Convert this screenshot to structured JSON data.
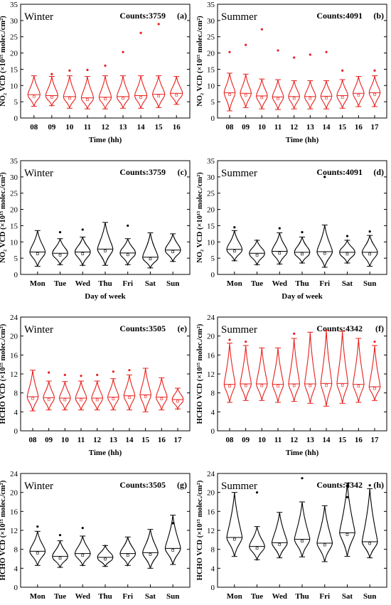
{
  "chart_data": [
    {
      "id": "a",
      "type": "violin",
      "season": "Winter",
      "counts": "Counts:3759",
      "panel_label": "(a)",
      "color": "#e8201c",
      "xlabel": "Time (hh)",
      "ylabel": "NO₂ VCD (×10¹⁵ molec./cm²)",
      "ylim": [
        0,
        35
      ],
      "yticks": [
        0,
        5,
        10,
        15,
        20,
        25,
        30,
        35
      ],
      "categories": [
        "08",
        "09",
        "10",
        "11",
        "12",
        "13",
        "14",
        "15",
        "16"
      ],
      "series": [
        {
          "whisker_low": 3.6,
          "whisker_high": 13.0,
          "center": 7.2,
          "outliers": []
        },
        {
          "whisker_low": 3.8,
          "whisker_high": 12.8,
          "center": 6.9,
          "outliers": [
            13.5
          ]
        },
        {
          "whisker_low": 3.0,
          "whisker_high": 13.0,
          "center": 6.6,
          "outliers": [
            14.6
          ]
        },
        {
          "whisker_low": 2.8,
          "whisker_high": 12.8,
          "center": 6.2,
          "outliers": [
            14.8
          ]
        },
        {
          "whisker_low": 2.8,
          "whisker_high": 13.0,
          "center": 6.4,
          "outliers": [
            16.1
          ]
        },
        {
          "whisker_low": 3.0,
          "whisker_high": 13.0,
          "center": 6.6,
          "outliers": [
            20.3
          ]
        },
        {
          "whisker_low": 3.0,
          "whisker_high": 13.0,
          "center": 6.9,
          "outliers": [
            26.2
          ]
        },
        {
          "whisker_low": 3.2,
          "whisker_high": 13.0,
          "center": 7.3,
          "outliers": [
            28.9
          ]
        },
        {
          "whisker_low": 4.2,
          "whisker_high": 12.8,
          "center": 7.6,
          "outliers": []
        }
      ]
    },
    {
      "id": "b",
      "type": "violin",
      "season": "Summer",
      "counts": "Counts:4091",
      "panel_label": "(b)",
      "color": "#e8201c",
      "xlabel": "Time (hh)",
      "ylabel": "NO₂ VCD (×10¹⁵ molec./cm²)",
      "ylim": [
        0,
        35
      ],
      "yticks": [
        0,
        5,
        10,
        15,
        20,
        25,
        30,
        35
      ],
      "categories": [
        "08",
        "09",
        "10",
        "11",
        "12",
        "13",
        "14",
        "15",
        "16",
        "17"
      ],
      "series": [
        {
          "whisker_low": 2.2,
          "whisker_high": 13.8,
          "center": 7.8,
          "outliers": [
            20.3
          ]
        },
        {
          "whisker_low": 3.2,
          "whisker_high": 13.5,
          "center": 7.6,
          "outliers": [
            22.5
          ]
        },
        {
          "whisker_low": 2.8,
          "whisker_high": 12.0,
          "center": 6.8,
          "outliers": [
            27.3
          ]
        },
        {
          "whisker_low": 2.6,
          "whisker_high": 11.8,
          "center": 6.5,
          "outliers": [
            20.8
          ]
        },
        {
          "whisker_low": 2.8,
          "whisker_high": 11.5,
          "center": 6.6,
          "outliers": [
            18.6
          ]
        },
        {
          "whisker_low": 2.8,
          "whisker_high": 11.5,
          "center": 6.6,
          "outliers": [
            19.5
          ]
        },
        {
          "whisker_low": 2.8,
          "whisker_high": 11.5,
          "center": 6.7,
          "outliers": [
            20.3
          ]
        },
        {
          "whisker_low": 3.0,
          "whisker_high": 11.8,
          "center": 6.9,
          "outliers": [
            14.6
          ]
        },
        {
          "whisker_low": 3.5,
          "whisker_high": 12.8,
          "center": 7.6,
          "outliers": []
        },
        {
          "whisker_low": 3.5,
          "whisker_high": 13.0,
          "center": 7.8,
          "outliers": [
            14.6
          ]
        }
      ]
    },
    {
      "id": "c",
      "type": "violin",
      "season": "Winter",
      "counts": "Counts:3759",
      "panel_label": "(c)",
      "color": "#000000",
      "xlabel": "Day of week",
      "ylabel": "NO₂ VCD (×10¹⁵ molec./cm²)",
      "ylim": [
        0,
        35
      ],
      "yticks": [
        0,
        5,
        10,
        15,
        20,
        25,
        30,
        35
      ],
      "categories": [
        "Mon",
        "Tue",
        "Wed",
        "Thu",
        "Fri",
        "Sat",
        "Sun"
      ],
      "series": [
        {
          "whisker_low": 2.5,
          "whisker_high": 13.5,
          "center": 6.9,
          "outliers": []
        },
        {
          "whisker_low": 3.0,
          "whisker_high": 11.0,
          "center": 6.5,
          "outliers": [
            13.0
          ]
        },
        {
          "whisker_low": 2.8,
          "whisker_high": 11.5,
          "center": 6.9,
          "outliers": [
            13.8
          ]
        },
        {
          "whisker_low": 2.8,
          "whisker_high": 16.0,
          "center": 7.8,
          "outliers": []
        },
        {
          "whisker_low": 3.0,
          "whisker_high": 11.0,
          "center": 6.6,
          "outliers": [
            15.0
          ]
        },
        {
          "whisker_low": 2.0,
          "whisker_high": 12.8,
          "center": 5.3,
          "outliers": []
        },
        {
          "whisker_low": 4.0,
          "whisker_high": 12.5,
          "center": 7.5,
          "outliers": []
        }
      ]
    },
    {
      "id": "d",
      "type": "violin",
      "season": "Summer",
      "counts": "Counts:4091",
      "panel_label": "(d)",
      "color": "#000000",
      "xlabel": "Day of week",
      "ylabel": "NO₂ VCD (×10¹⁵ molec./cm²)",
      "ylim": [
        0,
        35
      ],
      "yticks": [
        0,
        5,
        10,
        15,
        20,
        25,
        30,
        35
      ],
      "categories": [
        "Mon",
        "Tue",
        "Wed",
        "Thu",
        "Fri",
        "Sat",
        "Sun"
      ],
      "series": [
        {
          "whisker_low": 4.2,
          "whisker_high": 13.5,
          "center": 7.7,
          "outliers": [
            14.5
          ]
        },
        {
          "whisker_low": 3.0,
          "whisker_high": 10.5,
          "center": 6.5,
          "outliers": []
        },
        {
          "whisker_low": 3.2,
          "whisker_high": 12.8,
          "center": 7.1,
          "outliers": [
            14.2
          ]
        },
        {
          "whisker_low": 3.5,
          "whisker_high": 11.5,
          "center": 6.8,
          "outliers": [
            13.0
          ]
        },
        {
          "whisker_low": 2.2,
          "whisker_high": 15.2,
          "center": 7.0,
          "outliers": [
            30.0
          ]
        },
        {
          "whisker_low": 3.5,
          "whisker_high": 10.5,
          "center": 6.8,
          "outliers": [
            11.8
          ]
        },
        {
          "whisker_low": 2.5,
          "whisker_high": 12.0,
          "center": 6.8,
          "outliers": [
            13.2
          ]
        }
      ]
    },
    {
      "id": "e",
      "type": "violin",
      "season": "Winter",
      "counts": "Counts:3505",
      "panel_label": "(e)",
      "color": "#e8201c",
      "xlabel": "Time (hh)",
      "ylabel": "HCHO VCD (×10¹⁵ molec./cm²)",
      "ylim": [
        0,
        24
      ],
      "yticks": [
        0,
        4,
        8,
        12,
        16,
        20,
        24
      ],
      "categories": [
        "08",
        "09",
        "10",
        "11",
        "12",
        "13",
        "14",
        "15",
        "16",
        "17"
      ],
      "series": [
        {
          "whisker_low": 4.2,
          "whisker_high": 12.8,
          "center": 7.2,
          "outliers": []
        },
        {
          "whisker_low": 4.4,
          "whisker_high": 10.5,
          "center": 7.0,
          "outliers": [
            12.3
          ]
        },
        {
          "whisker_low": 4.4,
          "whisker_high": 10.4,
          "center": 6.9,
          "outliers": [
            11.8
          ]
        },
        {
          "whisker_low": 4.4,
          "whisker_high": 10.5,
          "center": 6.9,
          "outliers": [
            11.6
          ]
        },
        {
          "whisker_low": 4.4,
          "whisker_high": 10.5,
          "center": 6.9,
          "outliers": [
            11.8
          ]
        },
        {
          "whisker_low": 4.4,
          "whisker_high": 11.0,
          "center": 7.1,
          "outliers": [
            12.5
          ]
        },
        {
          "whisker_low": 4.4,
          "whisker_high": 11.8,
          "center": 7.4,
          "outliers": [
            12.8
          ]
        },
        {
          "whisker_low": 4.0,
          "whisker_high": 13.2,
          "center": 7.6,
          "outliers": []
        },
        {
          "whisker_low": 4.4,
          "whisker_high": 11.2,
          "center": 7.1,
          "outliers": []
        },
        {
          "whisker_low": 4.6,
          "whisker_high": 9.0,
          "center": 6.6,
          "outliers": []
        }
      ]
    },
    {
      "id": "f",
      "type": "violin",
      "season": "Summer",
      "counts": "Counts:4342",
      "panel_label": "(f)",
      "color": "#e8201c",
      "xlabel": "Time (hh)",
      "ylabel": "HCHO VCD (×10¹⁵ molec./cm²)",
      "ylim": [
        0,
        24
      ],
      "yticks": [
        0,
        4,
        8,
        12,
        16,
        20,
        24
      ],
      "categories": [
        "08",
        "09",
        "10",
        "11",
        "12",
        "13",
        "14",
        "15",
        "16",
        "17"
      ],
      "series": [
        {
          "whisker_low": 6.0,
          "whisker_high": 18.5,
          "center": 9.8,
          "outliers": [
            19.2
          ]
        },
        {
          "whisker_low": 6.4,
          "whisker_high": 18.0,
          "center": 9.9,
          "outliers": [
            18.8
          ]
        },
        {
          "whisker_low": 6.4,
          "whisker_high": 17.5,
          "center": 9.9,
          "outliers": []
        },
        {
          "whisker_low": 6.0,
          "whisker_high": 17.5,
          "center": 9.8,
          "outliers": []
        },
        {
          "whisker_low": 6.2,
          "whisker_high": 19.5,
          "center": 9.9,
          "outliers": [
            20.5
          ]
        },
        {
          "whisker_low": 5.8,
          "whisker_high": 20.8,
          "center": 9.9,
          "outliers": []
        },
        {
          "whisker_low": 5.2,
          "whisker_high": 21.2,
          "center": 10.0,
          "outliers": []
        },
        {
          "whisker_low": 5.8,
          "whisker_high": 21.0,
          "center": 10.0,
          "outliers": []
        },
        {
          "whisker_low": 6.0,
          "whisker_high": 19.5,
          "center": 9.8,
          "outliers": []
        },
        {
          "whisker_low": 6.4,
          "whisker_high": 18.0,
          "center": 9.3,
          "outliers": [
            18.8
          ]
        }
      ]
    },
    {
      "id": "g",
      "type": "violin",
      "season": "Winter",
      "counts": "Counts:3505",
      "panel_label": "(g)",
      "color": "#000000",
      "xlabel": "Day of week",
      "ylabel": "HCHO VCD (×10¹⁵ molec./cm²)",
      "ylim": [
        0,
        24
      ],
      "yticks": [
        0,
        4,
        8,
        12,
        16,
        20,
        24
      ],
      "categories": [
        "Mon",
        "Tue",
        "Wed",
        "Thu",
        "Fri",
        "Sat",
        "Sun"
      ],
      "series": [
        {
          "whisker_low": 4.6,
          "whisker_high": 11.8,
          "center": 7.6,
          "outliers": [
            12.8
          ]
        },
        {
          "whisker_low": 4.2,
          "whisker_high": 9.8,
          "center": 6.5,
          "outliers": [
            11.0
          ]
        },
        {
          "whisker_low": 4.6,
          "whisker_high": 10.8,
          "center": 7.1,
          "outliers": [
            12.5
          ]
        },
        {
          "whisker_low": 4.4,
          "whisker_high": 8.8,
          "center": 6.3,
          "outliers": []
        },
        {
          "whisker_low": 4.6,
          "whisker_high": 10.6,
          "center": 7.1,
          "outliers": []
        },
        {
          "whisker_low": 4.0,
          "whisker_high": 12.2,
          "center": 7.3,
          "outliers": []
        },
        {
          "whisker_low": 4.8,
          "whisker_high": 15.2,
          "center": 8.2,
          "outliers": [
            13.5
          ]
        }
      ]
    },
    {
      "id": "h",
      "type": "violin",
      "season": "Summer",
      "counts": "Counts:4342",
      "panel_label": "(h)",
      "color": "#000000",
      "xlabel": "Day of week",
      "ylabel": "HCHO VCD (×10¹⁵ molec./cm²)",
      "ylim": [
        0,
        24
      ],
      "yticks": [
        0,
        4,
        8,
        12,
        16,
        20,
        24
      ],
      "categories": [
        "Mon",
        "Tue",
        "Wed",
        "Thu",
        "Fri",
        "Sat",
        "Sun"
      ],
      "series": [
        {
          "whisker_low": 6.5,
          "whisker_high": 20.0,
          "center": 10.5,
          "outliers": []
        },
        {
          "whisker_low": 5.8,
          "whisker_high": 12.8,
          "center": 8.6,
          "outliers": [
            20.0
          ]
        },
        {
          "whisker_low": 6.2,
          "whisker_high": 15.8,
          "center": 9.4,
          "outliers": []
        },
        {
          "whisker_low": 6.4,
          "whisker_high": 18.0,
          "center": 10.1,
          "outliers": [
            23.0
          ]
        },
        {
          "whisker_low": 5.4,
          "whisker_high": 17.2,
          "center": 9.3,
          "outliers": []
        },
        {
          "whisker_low": 6.5,
          "whisker_high": 22.0,
          "center": 11.5,
          "outliers": [
            19.0
          ]
        },
        {
          "whisker_low": 6.2,
          "whisker_high": 20.8,
          "center": 9.6,
          "outliers": [
            21.5
          ]
        }
      ]
    }
  ]
}
